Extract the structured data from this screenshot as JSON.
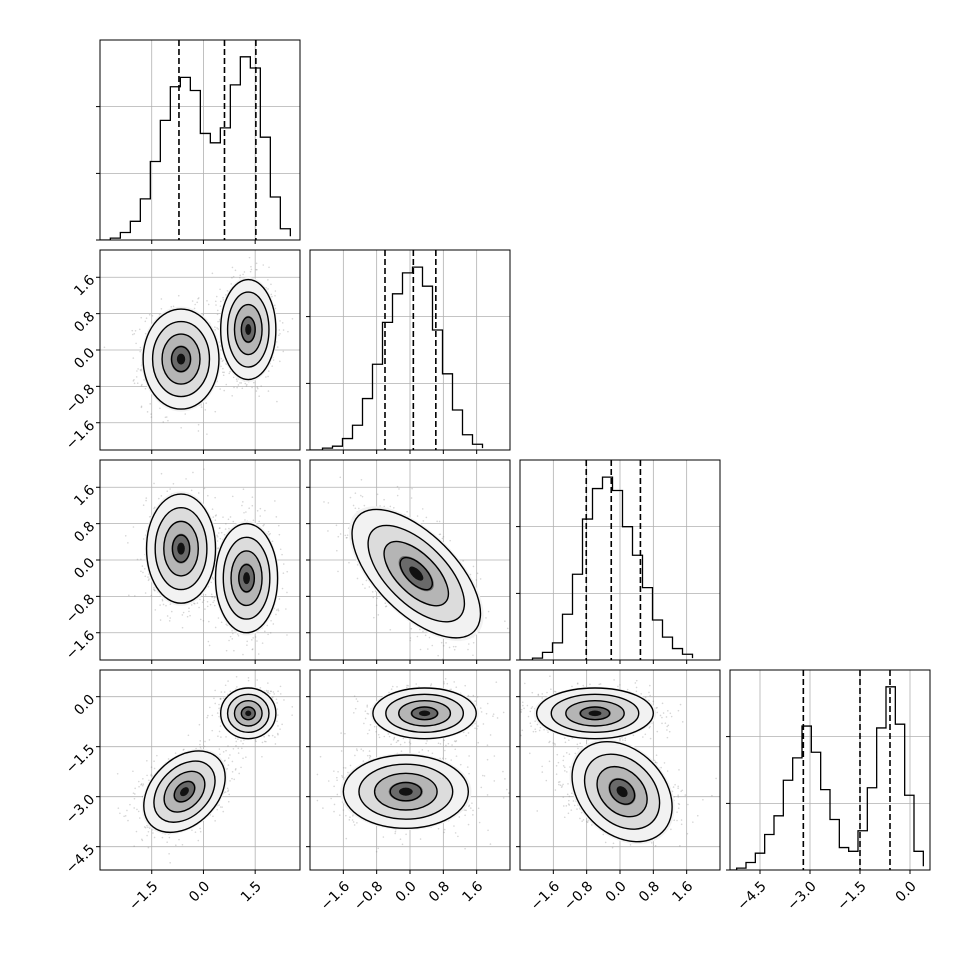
{
  "chart_data": {
    "type": "corner",
    "title": "",
    "grid": true,
    "parameters": 4,
    "colors": {
      "line": "#000000",
      "grid": "#b0b0b0",
      "points": "#8a8a8a"
    },
    "panels": [
      {
        "kind": "histogram",
        "row": 0,
        "col": 0,
        "xlim": [
          -3,
          2.8
        ],
        "ylim": [
          0,
          1.07
        ],
        "ylim_label": "",
        "bin_edges": [
          -2.7,
          -2.41,
          -2.12,
          -1.83,
          -1.54,
          -1.25,
          -0.96,
          -0.67,
          -0.38,
          -0.09,
          0.2,
          0.49,
          0.78,
          1.07,
          1.36,
          1.65,
          1.94,
          2.23,
          2.52
        ],
        "counts": [
          0.01,
          0.04,
          0.1,
          0.22,
          0.42,
          0.64,
          0.82,
          0.87,
          0.8,
          0.57,
          0.52,
          0.6,
          0.83,
          0.98,
          0.92,
          0.55,
          0.23,
          0.06,
          0.02
        ],
        "quantiles": [
          -0.71,
          0.61,
          1.52
        ]
      },
      {
        "kind": "scatter-contour",
        "row": 1,
        "col": 0,
        "xlim": [
          -3,
          2.8
        ],
        "ylim": [
          -2.2,
          2.2
        ],
        "clusters": [
          {
            "cx": -0.65,
            "cy": -0.2,
            "sx": 0.55,
            "sy": 0.55,
            "rho": 0
          },
          {
            "cx": 1.3,
            "cy": 0.45,
            "sx": 0.4,
            "sy": 0.55,
            "rho": 0
          }
        ]
      },
      {
        "kind": "histogram",
        "row": 1,
        "col": 1,
        "xlim": [
          -2.4,
          2.4
        ],
        "ylim": [
          0,
          1.05
        ],
        "bin_edges": [
          -2.1,
          -1.86,
          -1.62,
          -1.38,
          -1.14,
          -0.9,
          -0.66,
          -0.42,
          -0.18,
          0.06,
          0.3,
          0.54,
          0.78,
          1.02,
          1.26,
          1.5,
          1.74
        ],
        "counts": [
          0.01,
          0.02,
          0.06,
          0.13,
          0.27,
          0.45,
          0.67,
          0.82,
          0.93,
          0.96,
          0.86,
          0.63,
          0.4,
          0.21,
          0.08,
          0.03,
          0.01
        ],
        "quantiles": [
          -0.6,
          0.08,
          0.62
        ]
      },
      {
        "kind": "scatter-contour",
        "row": 2,
        "col": 0,
        "xlim": [
          -3,
          2.8
        ],
        "ylim": [
          -2.2,
          2.2
        ],
        "clusters": [
          {
            "cx": -0.65,
            "cy": 0.25,
            "sx": 0.5,
            "sy": 0.6,
            "rho": 0
          },
          {
            "cx": 1.25,
            "cy": -0.4,
            "sx": 0.45,
            "sy": 0.6,
            "rho": 0
          }
        ]
      },
      {
        "kind": "scatter-contour",
        "row": 2,
        "col": 1,
        "xlim": [
          -2.4,
          2.4
        ],
        "ylim": [
          -2.2,
          2.2
        ],
        "clusters": [
          {
            "cx": 0.15,
            "cy": -0.3,
            "sx": 0.72,
            "sy": 0.75,
            "rho": -0.62
          }
        ]
      },
      {
        "kind": "histogram",
        "row": 2,
        "col": 2,
        "xlim": [
          -2.4,
          2.4
        ],
        "ylim": [
          0,
          1.05
        ],
        "bin_edges": [
          -2.1,
          -1.86,
          -1.62,
          -1.38,
          -1.14,
          -0.9,
          -0.66,
          -0.42,
          -0.18,
          0.06,
          0.3,
          0.54,
          0.78,
          1.02,
          1.26,
          1.5,
          1.74
        ],
        "counts": [
          0.01,
          0.04,
          0.09,
          0.24,
          0.45,
          0.74,
          0.9,
          0.96,
          0.89,
          0.7,
          0.55,
          0.38,
          0.21,
          0.12,
          0.06,
          0.03,
          0.01
        ],
        "quantiles": [
          -0.81,
          -0.21,
          0.49
        ]
      },
      {
        "kind": "scatter-contour",
        "row": 3,
        "col": 0,
        "xlim": [
          -3,
          2.8
        ],
        "ylim": [
          -5.2,
          0.8
        ],
        "clusters": [
          {
            "cx": -0.55,
            "cy": -2.85,
            "sx": 0.6,
            "sy": 0.6,
            "rho": 0.35
          },
          {
            "cx": 1.3,
            "cy": -0.5,
            "sx": 0.4,
            "sy": 0.38,
            "rho": 0
          }
        ]
      },
      {
        "kind": "scatter-contour",
        "row": 3,
        "col": 1,
        "xlim": [
          -2.4,
          2.4
        ],
        "ylim": [
          -5.2,
          0.8
        ],
        "clusters": [
          {
            "cx": -0.1,
            "cy": -2.85,
            "sx": 0.75,
            "sy": 0.55,
            "rho": 0
          },
          {
            "cx": 0.35,
            "cy": -0.5,
            "sx": 0.62,
            "sy": 0.38,
            "rho": 0
          }
        ]
      },
      {
        "kind": "scatter-contour",
        "row": 3,
        "col": 2,
        "xlim": [
          -2.4,
          2.4
        ],
        "ylim": [
          -5.2,
          0.8
        ],
        "clusters": [
          {
            "cx": 0.05,
            "cy": -2.85,
            "sx": 0.7,
            "sy": 0.6,
            "rho": -0.3
          },
          {
            "cx": -0.6,
            "cy": -0.5,
            "sx": 0.7,
            "sy": 0.38,
            "rho": 0
          }
        ]
      },
      {
        "kind": "histogram",
        "row": 3,
        "col": 3,
        "xlim": [
          -5.4,
          0.6
        ],
        "ylim": [
          0,
          1.07
        ],
        "bin_edges": [
          -5.2,
          -4.92,
          -4.64,
          -4.36,
          -4.08,
          -3.8,
          -3.52,
          -3.24,
          -2.96,
          -2.68,
          -2.4,
          -2.12,
          -1.84,
          -1.56,
          -1.28,
          -1.0,
          -0.72,
          -0.44,
          -0.16,
          0.12,
          0.4
        ],
        "counts": [
          0.01,
          0.04,
          0.09,
          0.19,
          0.29,
          0.48,
          0.6,
          0.77,
          0.63,
          0.43,
          0.27,
          0.12,
          0.1,
          0.21,
          0.44,
          0.76,
          0.98,
          0.78,
          0.4,
          0.1,
          0.02
        ],
        "quantiles": [
          -3.2,
          -1.5,
          -0.6
        ]
      }
    ],
    "x_axes": [
      {
        "col": 0,
        "ticks": [
          -1.5,
          0.0,
          1.5
        ],
        "tick_labels": [
          "−1.5",
          "0.0",
          "1.5"
        ]
      },
      {
        "col": 1,
        "ticks": [
          -1.6,
          -0.8,
          0.0,
          0.8,
          1.6
        ],
        "tick_labels": [
          "−1.6",
          "−0.8",
          "0.0",
          "0.8",
          "1.6"
        ]
      },
      {
        "col": 2,
        "ticks": [
          -1.6,
          -0.8,
          0.0,
          0.8,
          1.6
        ],
        "tick_labels": [
          "−1.6",
          "−0.8",
          "0.0",
          "0.8",
          "1.6"
        ]
      },
      {
        "col": 3,
        "ticks": [
          -4.5,
          -3.0,
          -1.5,
          0.0
        ],
        "tick_labels": [
          "−4.5",
          "−3.0",
          "−1.5",
          "0.0"
        ]
      }
    ],
    "y_axes": [
      {
        "row": 1,
        "ticks": [
          1.6,
          0.8,
          0.0,
          -0.8,
          -1.6
        ],
        "tick_labels": [
          "1.6",
          "0.8",
          "0.0",
          "−0.8",
          "−1.6"
        ]
      },
      {
        "row": 2,
        "ticks": [
          1.6,
          0.8,
          0.0,
          -0.8,
          -1.6
        ],
        "tick_labels": [
          "1.6",
          "0.8",
          "0.0",
          "−0.8",
          "−1.6"
        ]
      },
      {
        "row": 3,
        "ticks": [
          0.0,
          -1.5,
          -3.0,
          -4.5
        ],
        "tick_labels": [
          "0.0",
          "−1.5",
          "−3.0",
          "−4.5"
        ]
      }
    ]
  }
}
